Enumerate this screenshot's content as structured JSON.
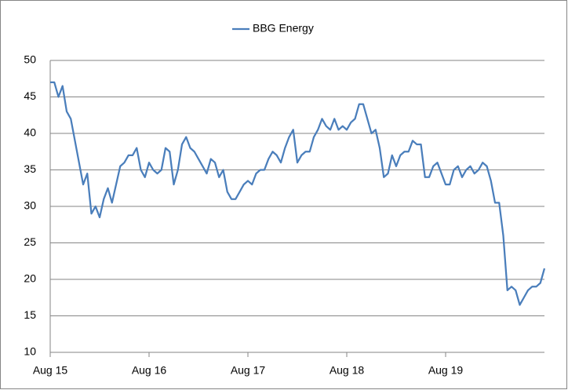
{
  "chart_data": {
    "type": "line",
    "categories": [
      "Aug 15",
      null,
      null,
      null,
      null,
      null,
      null,
      null,
      null,
      null,
      null,
      null,
      null,
      null,
      null,
      null,
      null,
      null,
      null,
      null,
      null,
      null,
      null,
      null,
      "Aug 16",
      null,
      null,
      null,
      null,
      null,
      null,
      null,
      null,
      null,
      null,
      null,
      null,
      null,
      null,
      null,
      null,
      null,
      null,
      null,
      null,
      null,
      null,
      null,
      "Aug 17",
      null,
      null,
      null,
      null,
      null,
      null,
      null,
      null,
      null,
      null,
      null,
      null,
      null,
      null,
      null,
      null,
      null,
      null,
      null,
      null,
      null,
      null,
      null,
      "Aug 18",
      null,
      null,
      null,
      null,
      null,
      null,
      null,
      null,
      null,
      null,
      null,
      null,
      null,
      null,
      null,
      null,
      null,
      null,
      null,
      null,
      null,
      null,
      null,
      "Aug 19",
      null,
      null,
      null,
      null,
      null,
      null,
      null,
      null,
      null,
      null,
      null,
      null,
      null,
      null,
      null,
      null,
      null,
      null,
      null,
      null,
      null,
      null,
      null,
      null
    ],
    "series": [
      {
        "name": "BBG Energy",
        "color": "#4a7ebb",
        "values": [
          47,
          47,
          45,
          46.5,
          43,
          42,
          39,
          36,
          33,
          34.5,
          29,
          30,
          28.5,
          31,
          32.5,
          30.5,
          33,
          35.5,
          36,
          37,
          37,
          38,
          35,
          34,
          36,
          35,
          34.5,
          35,
          38,
          37.5,
          33,
          35,
          38.5,
          39.5,
          38,
          37.5,
          36.5,
          35.5,
          34.5,
          36.5,
          36,
          34,
          35,
          32,
          31,
          31,
          32,
          33,
          33.5,
          33,
          34.5,
          35,
          35,
          36.5,
          37.5,
          37,
          36,
          38,
          39.5,
          40.5,
          36,
          37,
          37.5,
          37.5,
          39.5,
          40.5,
          42,
          41,
          40.5,
          42,
          40.5,
          41,
          40.5,
          41.5,
          42,
          44,
          44,
          42,
          40,
          40.5,
          38,
          34,
          34.5,
          37,
          35.5,
          37,
          37.5,
          37.5,
          39,
          38.5,
          38.5,
          34,
          34,
          35.5,
          36,
          34.5,
          33,
          33,
          35,
          35.5,
          34,
          35,
          35.5,
          34.5,
          35,
          36,
          35.5,
          33.5,
          30.5,
          30.5,
          26,
          18.5,
          19,
          18.5,
          16.5,
          17.5,
          18.5,
          19,
          19,
          19.5,
          21.5
        ]
      }
    ],
    "ylim": [
      10,
      50
    ],
    "yticks": [
      10,
      15,
      20,
      25,
      30,
      35,
      40,
      45,
      50
    ],
    "grid": true,
    "legend": "top"
  }
}
